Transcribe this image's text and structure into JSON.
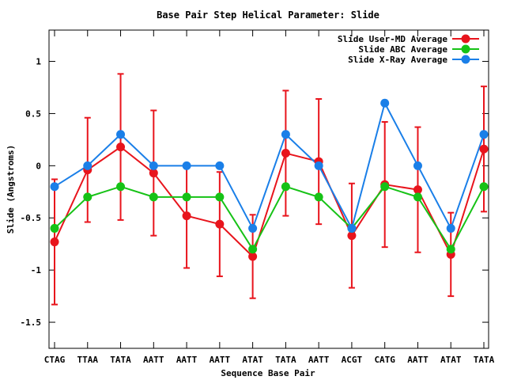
{
  "chart_data": {
    "type": "line",
    "title": "Base Pair Step Helical Parameter: Slide",
    "xlabel": "Sequence Base Pair",
    "ylabel": "Slide (Angstroms)",
    "ylim": [
      -1.75,
      1.3
    ],
    "yticks": [
      {
        "value": 1,
        "label": "1"
      },
      {
        "value": 0.5,
        "label": "0.5"
      },
      {
        "value": 0,
        "label": "0"
      },
      {
        "value": -0.5,
        "label": "-0.5"
      },
      {
        "value": -1,
        "label": "-1"
      },
      {
        "value": -1.5,
        "label": "-1.5"
      }
    ],
    "categories": [
      "CTAG",
      "TTAA",
      "TATA",
      "AATT",
      "AATT",
      "AATT",
      "ATAT",
      "TATA",
      "AATT",
      "ACGT",
      "CATG",
      "AATT",
      "ATAT",
      "TATA"
    ],
    "legend_position": "top-right",
    "grid": false,
    "series": [
      {
        "name": "Slide User-MD Average",
        "color": "#e8141c",
        "values": [
          -0.73,
          -0.04,
          0.18,
          -0.07,
          -0.48,
          -0.56,
          -0.87,
          0.12,
          0.04,
          -0.67,
          -0.18,
          -0.23,
          -0.85,
          0.16
        ],
        "error": [
          0.6,
          0.5,
          0.7,
          0.6,
          0.5,
          0.5,
          0.4,
          0.6,
          0.6,
          0.5,
          0.6,
          0.6,
          0.4,
          0.6
        ]
      },
      {
        "name": "Slide ABC Average",
        "color": "#16c216",
        "values": [
          -0.6,
          -0.3,
          -0.2,
          -0.3,
          -0.3,
          -0.3,
          -0.8,
          -0.2,
          -0.3,
          -0.6,
          -0.2,
          -0.3,
          -0.8,
          -0.2
        ]
      },
      {
        "name": "Slide X-Ray Average",
        "color": "#1a7fe8",
        "values": [
          -0.2,
          0.0,
          0.3,
          0.0,
          0.0,
          0.0,
          -0.6,
          0.3,
          0.0,
          -0.6,
          0.6,
          0.0,
          -0.6,
          0.3
        ]
      }
    ]
  }
}
